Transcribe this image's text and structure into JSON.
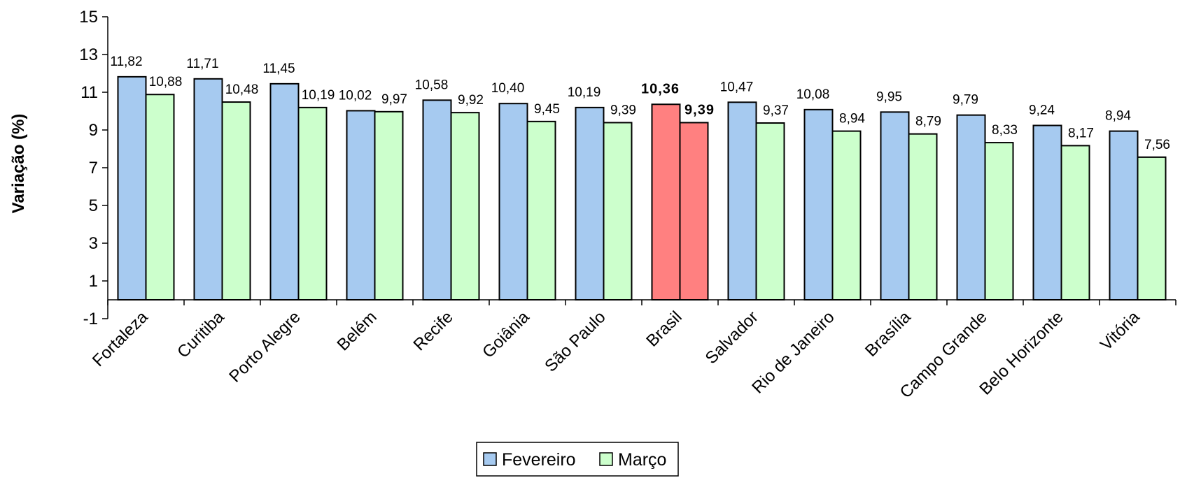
{
  "chart_data": {
    "type": "bar",
    "categories": [
      "Fortaleza",
      "Curitiba",
      "Porto Alegre",
      "Belém",
      "Recife",
      "Goiânia",
      "São Paulo",
      "Brasil",
      "Salvador",
      "Rio de Janeiro",
      "Brasília",
      "Campo Grande",
      "Belo Horizonte",
      "Vitória"
    ],
    "series": [
      {
        "name": "Fevereiro",
        "values": [
          11.82,
          11.71,
          11.45,
          10.02,
          10.58,
          10.4,
          10.19,
          10.36,
          10.47,
          10.08,
          9.95,
          9.79,
          9.24,
          8.94
        ],
        "labels": [
          "11,82",
          "11,71",
          "11,45",
          "10,02",
          "10,58",
          "10,40",
          "10,19",
          "10,36",
          "10,47",
          "10,08",
          "9,95",
          "9,79",
          "9,24",
          "8,94"
        ],
        "color": "#A6CAF0"
      },
      {
        "name": "Março",
        "values": [
          10.88,
          10.48,
          10.19,
          9.97,
          9.92,
          9.45,
          9.39,
          9.39,
          9.37,
          8.94,
          8.79,
          8.33,
          8.17,
          7.56
        ],
        "labels": [
          "10,88",
          "10,48",
          "10,19",
          "9,97",
          "9,92",
          "9,45",
          "9,39",
          "9,39",
          "9,37",
          "8,94",
          "8,79",
          "8,33",
          "8,17",
          "7,56"
        ],
        "color": "#CCFFCC"
      }
    ],
    "highlight": {
      "category": "Brasil",
      "color": "#FF8080"
    },
    "ylabel": "Variação (%)",
    "xlabel": "",
    "ylim": [
      -1,
      15
    ],
    "yticks": [
      -1,
      1,
      3,
      5,
      7,
      9,
      11,
      13,
      15
    ],
    "grid": false,
    "legend": "bottom-center"
  }
}
